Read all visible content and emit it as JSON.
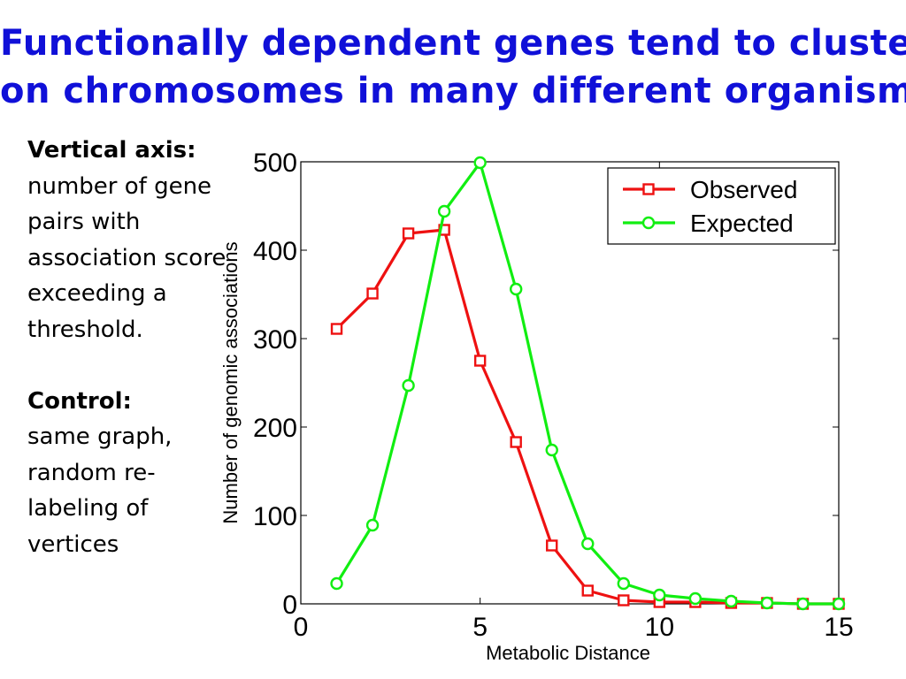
{
  "slide": {
    "title_line1": "Functionally dependent genes tend to cluster",
    "title_line2": "on chromosomes in many different organisms"
  },
  "side_text": {
    "vertical_axis_label": "Vertical axis:",
    "vertical_axis_desc": " number of gene pairs with association score exceeding a threshold.",
    "control_label": "Control:",
    "control_desc": "same graph, random re-labeling of vertices"
  },
  "chart_data": {
    "type": "line",
    "xlabel": "Metabolic Distance",
    "ylabel": "Number of genomic associations",
    "xlim": [
      0,
      15
    ],
    "ylim": [
      0,
      500
    ],
    "xticks": [
      0,
      5,
      10,
      15
    ],
    "yticks": [
      0,
      100,
      200,
      300,
      400,
      500
    ],
    "grid": false,
    "legend_position": "top-right",
    "series": [
      {
        "name": "Observed",
        "color": "#ee1111",
        "marker": "square",
        "x": [
          1,
          2,
          3,
          4,
          5,
          6,
          7,
          8,
          9,
          10,
          11,
          12,
          13,
          14,
          15
        ],
        "y": [
          311,
          351,
          419,
          423,
          275,
          183,
          66,
          15,
          4,
          2,
          2,
          1,
          1,
          0,
          0
        ]
      },
      {
        "name": "Expected",
        "color": "#11ee11",
        "marker": "circle",
        "x": [
          1,
          2,
          3,
          4,
          5,
          6,
          7,
          8,
          9,
          10,
          11,
          12,
          13,
          14,
          15
        ],
        "y": [
          23,
          89,
          247,
          444,
          499,
          356,
          174,
          68,
          23,
          10,
          6,
          3,
          1,
          0,
          0
        ]
      }
    ]
  }
}
